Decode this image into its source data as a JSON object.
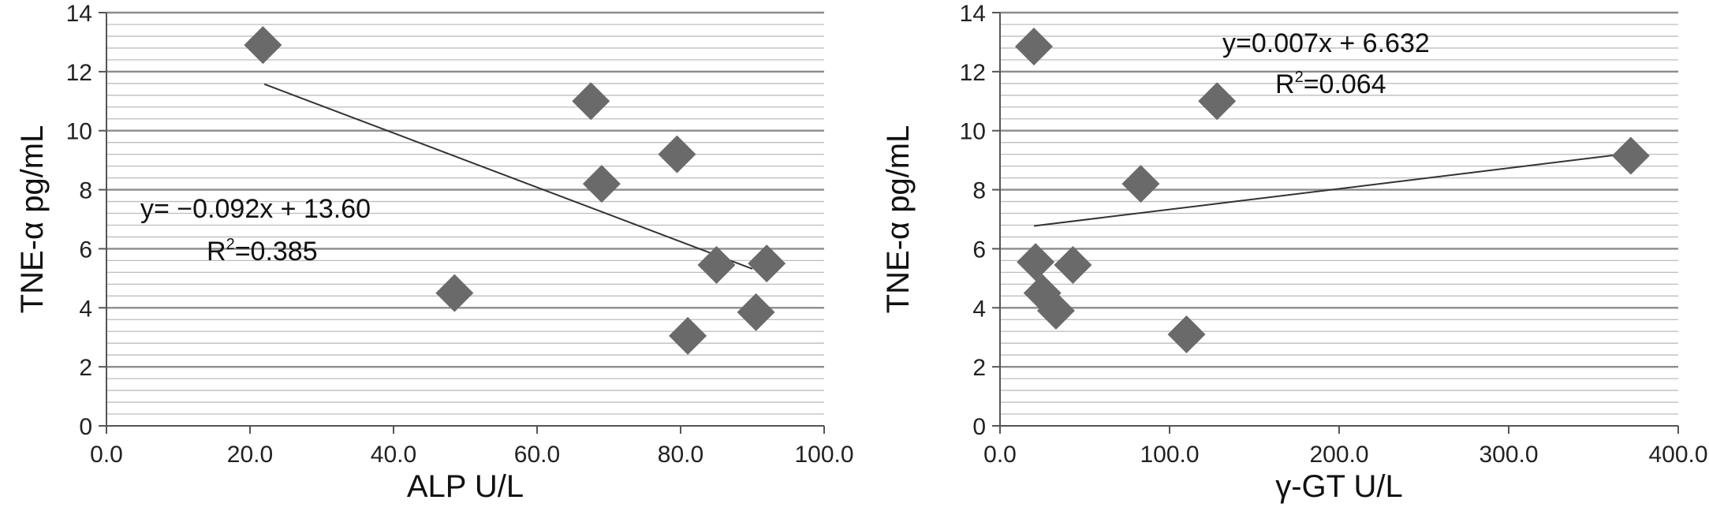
{
  "chart_data": [
    {
      "type": "scatter",
      "title": "",
      "xlabel": "ALP U/L",
      "ylabel": "TNE-α pg/mL",
      "xlim": [
        0,
        100
      ],
      "ylim": [
        0,
        14
      ],
      "xticks": [
        "0.0",
        "20.0",
        "40.0",
        "60.0",
        "80.0",
        "100.0"
      ],
      "yticks": [
        "0",
        "2",
        "4",
        "6",
        "8",
        "10",
        "12",
        "14"
      ],
      "major_grid_step": 2,
      "minor_grid_step": 0.4,
      "legend": "none",
      "marker": "diamond",
      "marker_color": "#6a6a6a",
      "points": [
        {
          "x": 21.8,
          "y": 12.9
        },
        {
          "x": 48.5,
          "y": 4.5
        },
        {
          "x": 67.5,
          "y": 11.0
        },
        {
          "x": 69.0,
          "y": 8.2
        },
        {
          "x": 79.5,
          "y": 9.2
        },
        {
          "x": 81.0,
          "y": 3.05
        },
        {
          "x": 85.0,
          "y": 5.45
        },
        {
          "x": 90.5,
          "y": 3.85
        },
        {
          "x": 92.0,
          "y": 5.5
        }
      ],
      "trendline": {
        "x_start": 22,
        "x_end": 90,
        "slope": -0.092,
        "intercept": 13.6
      },
      "annotation": {
        "equation": "y= −0.092x + 13.60",
        "r2_prefix": "R",
        "r2_sup": "2",
        "r2_value": "=0.385"
      }
    },
    {
      "type": "scatter",
      "title": "",
      "xlabel": "γ-GT U/L",
      "ylabel": "TNE-α pg/mL",
      "xlim": [
        0,
        400
      ],
      "ylim": [
        0,
        14
      ],
      "xticks": [
        "0.0",
        "100.0",
        "200.0",
        "300.0",
        "400.0"
      ],
      "yticks": [
        "0",
        "2",
        "4",
        "6",
        "8",
        "10",
        "12",
        "14"
      ],
      "major_grid_step": 2,
      "minor_grid_step": 0.4,
      "legend": "none",
      "marker": "diamond",
      "marker_color": "#6a6a6a",
      "points": [
        {
          "x": 20,
          "y": 12.85
        },
        {
          "x": 21,
          "y": 5.55
        },
        {
          "x": 25,
          "y": 4.5
        },
        {
          "x": 33,
          "y": 3.9
        },
        {
          "x": 43,
          "y": 5.45
        },
        {
          "x": 83,
          "y": 8.2
        },
        {
          "x": 110,
          "y": 3.1
        },
        {
          "x": 128,
          "y": 11.0
        },
        {
          "x": 372,
          "y": 9.15
        }
      ],
      "trendline": {
        "x_start": 20,
        "x_end": 372,
        "slope": 0.007,
        "intercept": 6.632
      },
      "annotation": {
        "equation": "y=0.007x + 6.632",
        "r2_prefix": "R",
        "r2_sup": "2",
        "r2_value": "=0.064"
      }
    }
  ]
}
